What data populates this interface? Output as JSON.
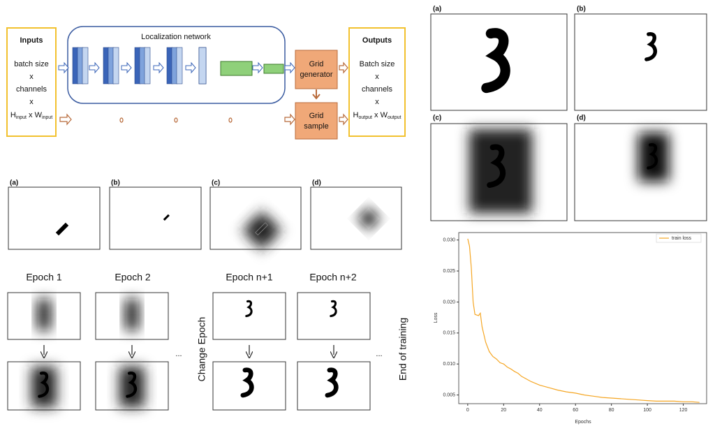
{
  "diagram": {
    "inputs_title": "Inputs",
    "inputs_lines": [
      "batch size",
      "x",
      "channels",
      "x"
    ],
    "inputs_size": [
      "H",
      "input",
      " x W",
      "input"
    ],
    "localization_title": "Localization network",
    "grid_generator": [
      "Grid",
      "generator"
    ],
    "grid_sample": [
      "Grid",
      "sample"
    ],
    "outputs_title": "Outputs",
    "outputs_lines": [
      "Batch size",
      "x",
      "channels",
      "x"
    ],
    "outputs_size": [
      "H",
      "output",
      " x W",
      "output"
    ]
  },
  "panels_small": {
    "labels": [
      "(a)",
      "(b)",
      "(c)",
      "(d)"
    ]
  },
  "epochs": {
    "labels": [
      "Epoch 1",
      "Epoch 2",
      "Epoch n+1",
      "Epoch n+2"
    ],
    "ellipsis": "...",
    "side_labels": [
      "Change Epoch",
      "End of training"
    ]
  },
  "panels_large": {
    "labels": [
      "(a)",
      "(b)",
      "(c)",
      "(d)"
    ]
  },
  "chart_data": {
    "type": "line",
    "xlabel": "Epochs",
    "ylabel": "Loss",
    "x": [
      0,
      1,
      2,
      3,
      4,
      6,
      7,
      8,
      10,
      12,
      14,
      16,
      18,
      20,
      22,
      24,
      26,
      28,
      30,
      35,
      40,
      45,
      50,
      55,
      60,
      65,
      70,
      75,
      80,
      85,
      90,
      95,
      100,
      105,
      110,
      115,
      120,
      125,
      129
    ],
    "series": [
      {
        "name": "train loss",
        "color": "#f5a623",
        "values": [
          0.0302,
          0.029,
          0.0255,
          0.02,
          0.018,
          0.0178,
          0.0182,
          0.016,
          0.0135,
          0.012,
          0.0112,
          0.0108,
          0.0102,
          0.01,
          0.0095,
          0.0092,
          0.0088,
          0.0085,
          0.008,
          0.0072,
          0.0066,
          0.0062,
          0.0058,
          0.0055,
          0.0053,
          0.005,
          0.0048,
          0.0046,
          0.0045,
          0.0044,
          0.0043,
          0.0042,
          0.0041,
          0.004,
          0.004,
          0.004,
          0.0039,
          0.0039,
          0.0038
        ]
      }
    ],
    "xlim": [
      -5,
      133
    ],
    "ylim": [
      0.0036,
      0.0312
    ],
    "xticks": [
      0,
      20,
      40,
      60,
      80,
      100,
      120
    ],
    "yticks": [
      0.005,
      {
        "value": 0.01,
        "label": "0.010"
      },
      0.015,
      {
        "value": 0.02,
        "label": "0.020"
      },
      0.025,
      {
        "value": 0.03,
        "label": "0.030"
      }
    ],
    "legend": "upper right"
  }
}
